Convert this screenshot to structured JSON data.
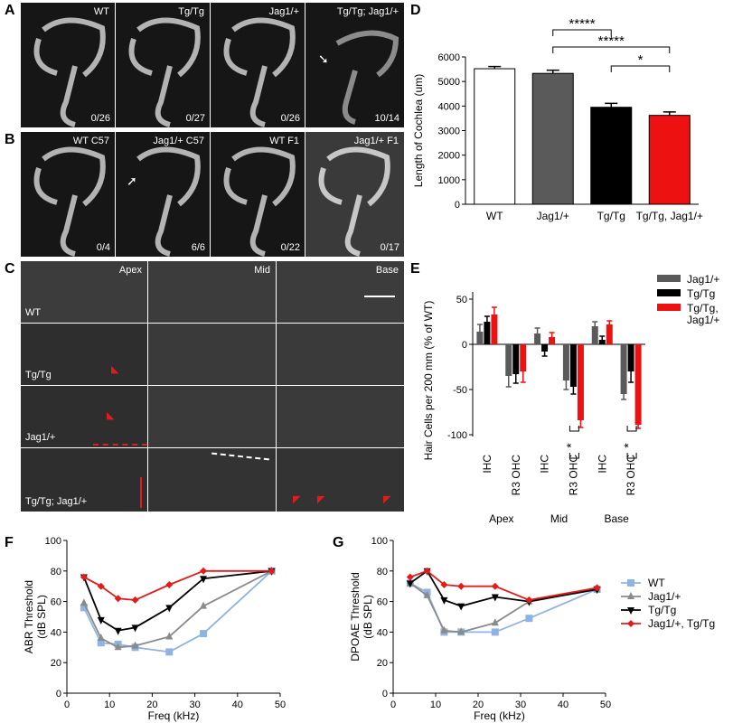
{
  "panels": {
    "A": {
      "letter": "A",
      "images": [
        {
          "label": "WT",
          "count": "0/26"
        },
        {
          "label": "Tg/Tg",
          "count": "0/27"
        },
        {
          "label": "Jag1/+",
          "count": "0/26"
        },
        {
          "label": "Tg/Tg; Jag1/+",
          "count": "10/14"
        }
      ]
    },
    "B": {
      "letter": "B",
      "images": [
        {
          "label": "WT C57",
          "count": "0/4"
        },
        {
          "label": "Jag1/+ C57",
          "count": "6/6"
        },
        {
          "label": "WT F1",
          "count": "0/22"
        },
        {
          "label": "Jag1/+ F1",
          "count": "0/17"
        }
      ]
    },
    "C": {
      "letter": "C",
      "col_labels": [
        "Apex",
        "Mid",
        "Base"
      ],
      "row_labels": [
        "WT",
        "Tg/Tg",
        "Jag1/+",
        "Tg/Tg; Jag1/+"
      ]
    },
    "D": {
      "letter": "D"
    },
    "E": {
      "letter": "E"
    },
    "F": {
      "letter": "F"
    },
    "G": {
      "letter": "G"
    }
  },
  "chart_data": [
    {
      "id": "D",
      "type": "bar",
      "categories": [
        "WT",
        "Jag1/+",
        "Tg/Tg",
        "Tg/Tg, Jag1/+"
      ],
      "values": [
        5520,
        5330,
        3950,
        3620
      ],
      "errors": [
        90,
        130,
        160,
        140
      ],
      "colors": [
        "#ffffff",
        "#5a5a5a",
        "#000000",
        "#ee1111"
      ],
      "ylabel": "Length of Cochlea (um)",
      "ylim": [
        0,
        6000
      ],
      "yticks": [
        0,
        1000,
        2000,
        3000,
        4000,
        5000,
        6000
      ],
      "significance": [
        {
          "from": 1,
          "to": 2,
          "label": "*****"
        },
        {
          "from": 1,
          "to": 3,
          "label": "*****"
        },
        {
          "from": 2,
          "to": 3,
          "label": "*"
        }
      ]
    },
    {
      "id": "E",
      "type": "bar",
      "ylabel": "Hair Cells per 200  mm (% of WT)",
      "ylim": [
        -100,
        50
      ],
      "yticks": [
        -100,
        -50,
        0,
        50
      ],
      "groups": [
        "IHC",
        "R3 OHC",
        "IHC",
        "R3 OHC",
        "IHC",
        "R3 OHC"
      ],
      "regions": [
        "Apex",
        "Mid",
        "Base"
      ],
      "series": [
        {
          "name": "Jag1/+",
          "color": "#5a5a5a",
          "values": [
            14,
            -35,
            12,
            -40,
            20,
            -55
          ],
          "errors": [
            8,
            12,
            6,
            10,
            5,
            6
          ]
        },
        {
          "name": "Tg/Tg",
          "color": "#000000",
          "values": [
            25,
            -33,
            -8,
            -47,
            5,
            -30
          ],
          "errors": [
            6,
            10,
            5,
            8,
            4,
            12
          ]
        },
        {
          "name": "Tg/Tg,\nJag1/+",
          "color": "#ee1111",
          "values": [
            33,
            -30,
            8,
            -84,
            22,
            -89
          ],
          "errors": [
            8,
            12,
            5,
            8,
            4,
            4
          ]
        }
      ],
      "significance": [
        {
          "group": 3,
          "label": "*"
        },
        {
          "group": 5,
          "label": "*"
        }
      ]
    },
    {
      "id": "F",
      "type": "line",
      "xlabel": "Freq (kHz)",
      "ylabel": "ABR Threshold\n(dB SPL)",
      "xlim": [
        0,
        50
      ],
      "xticks": [
        0,
        10,
        20,
        30,
        40,
        50
      ],
      "ylim": [
        0,
        100
      ],
      "yticks": [
        0,
        20,
        40,
        60,
        80,
        100
      ],
      "x": [
        4,
        8,
        12,
        16,
        24,
        32,
        48
      ],
      "series": [
        {
          "name": "WT",
          "color": "#8fb4e3",
          "marker": "square",
          "values": [
            56,
            33,
            32,
            30,
            27,
            39,
            80
          ]
        },
        {
          "name": "Jag1/+",
          "color": "#8a8a8a",
          "marker": "triangle-up",
          "values": [
            59,
            36,
            30,
            31,
            37,
            57,
            80
          ]
        },
        {
          "name": "Tg/Tg",
          "color": "#000000",
          "marker": "triangle-down",
          "values": [
            76,
            48,
            41,
            43,
            56,
            75,
            80
          ]
        },
        {
          "name": "Jag1/+, Tg/Tg",
          "color": "#e41b1b",
          "marker": "diamond",
          "values": [
            76,
            70,
            62,
            61,
            71,
            80,
            80
          ]
        }
      ]
    },
    {
      "id": "G",
      "type": "line",
      "xlabel": "Freq (kHz)",
      "ylabel": "DPOAE Threshold\n(dB SPL)",
      "xlim": [
        0,
        50
      ],
      "xticks": [
        0,
        10,
        20,
        30,
        40,
        50
      ],
      "ylim": [
        0,
        100
      ],
      "yticks": [
        0,
        20,
        40,
        60,
        80,
        100
      ],
      "x": [
        4,
        8,
        12,
        16,
        24,
        32,
        48
      ],
      "series": [
        {
          "name": "WT",
          "color": "#8fb4e3",
          "marker": "square",
          "values": [
            72,
            66,
            40,
            40,
            40,
            49,
            68
          ]
        },
        {
          "name": "Jag1/+",
          "color": "#8a8a8a",
          "marker": "triangle-up",
          "values": [
            72,
            64,
            41,
            40,
            46,
            60,
            68
          ]
        },
        {
          "name": "Tg/Tg",
          "color": "#000000",
          "marker": "triangle-down",
          "values": [
            72,
            80,
            61,
            57,
            63,
            60,
            68
          ]
        },
        {
          "name": "Jag1/+, Tg/Tg",
          "color": "#e41b1b",
          "marker": "diamond",
          "values": [
            76,
            80,
            71,
            70,
            70,
            61,
            69
          ]
        }
      ]
    }
  ]
}
